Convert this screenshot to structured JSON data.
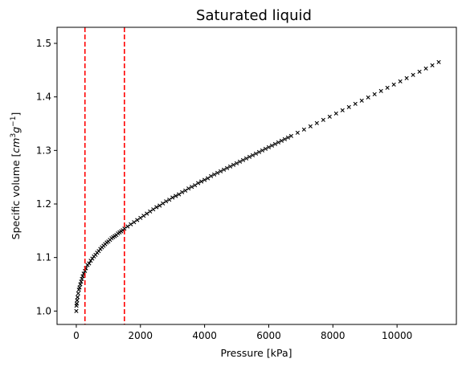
{
  "chart_data": {
    "type": "scatter",
    "title": "Saturated liquid",
    "xlabel": "Pressure [kPa]",
    "ylabel": {
      "prefix": "Specific volume [",
      "var1": "cm",
      "exp1": "3",
      "var2": "g",
      "exp2": "−1",
      "suffix": "]"
    },
    "xlim": [
      -600,
      11850
    ],
    "ylim": [
      0.975,
      1.53
    ],
    "xticks": [
      0,
      2000,
      4000,
      6000,
      8000,
      10000
    ],
    "xtick_labels": [
      "0",
      "2000",
      "4000",
      "6000",
      "8000",
      "10000"
    ],
    "yticks": [
      1.0,
      1.1,
      1.2,
      1.3,
      1.4,
      1.5
    ],
    "ytick_labels": [
      "1.0",
      "1.1",
      "1.2",
      "1.3",
      "1.4",
      "1.5"
    ],
    "grid": false,
    "marker": "x",
    "marker_color": "#000000",
    "vlines": [
      {
        "x": 270,
        "color": "#ff0000",
        "style": "dashed"
      },
      {
        "x": 1500,
        "color": "#ff0000",
        "style": "dashed"
      }
    ],
    "points": {
      "x": [
        0.6,
        5,
        15,
        25,
        40,
        60,
        80,
        100,
        125,
        150,
        175,
        200,
        230,
        270,
        300,
        350,
        400,
        450,
        500,
        550,
        600,
        650,
        700,
        750,
        800,
        850,
        900,
        950,
        1000,
        1050,
        1100,
        1150,
        1200,
        1250,
        1300,
        1350,
        1400,
        1450,
        1500,
        1600,
        1700,
        1800,
        1900,
        2000,
        2100,
        2200,
        2300,
        2400,
        2500,
        2600,
        2700,
        2800,
        2900,
        3000,
        3100,
        3200,
        3300,
        3400,
        3500,
        3600,
        3700,
        3800,
        3900,
        4000,
        4100,
        4200,
        4300,
        4400,
        4500,
        4600,
        4700,
        4800,
        4900,
        5000,
        5100,
        5200,
        5300,
        5400,
        5500,
        5600,
        5700,
        5800,
        5900,
        6000,
        6100,
        6200,
        6300,
        6400,
        6500,
        6600,
        6700,
        6900,
        7100,
        7300,
        7500,
        7700,
        7900,
        8100,
        8300,
        8500,
        8700,
        8900,
        9100,
        9300,
        9500,
        9700,
        9900,
        10100,
        10300,
        10500,
        10700,
        10900,
        11100,
        11300
      ],
      "y": [
        1.0,
        1.01,
        1.014,
        1.02,
        1.026,
        1.033,
        1.04,
        1.044,
        1.05,
        1.055,
        1.06,
        1.065,
        1.07,
        1.075,
        1.08,
        1.086,
        1.089,
        1.094,
        1.098,
        1.102,
        1.105,
        1.109,
        1.112,
        1.116,
        1.119,
        1.122,
        1.125,
        1.128,
        1.13,
        1.133,
        1.136,
        1.138,
        1.14,
        1.142,
        1.145,
        1.147,
        1.149,
        1.151,
        1.154,
        1.158,
        1.162,
        1.166,
        1.17,
        1.174,
        1.178,
        1.182,
        1.186,
        1.19,
        1.194,
        1.197,
        1.201,
        1.205,
        1.208,
        1.212,
        1.215,
        1.218,
        1.222,
        1.225,
        1.229,
        1.232,
        1.235,
        1.239,
        1.242,
        1.245,
        1.248,
        1.252,
        1.255,
        1.258,
        1.261,
        1.264,
        1.267,
        1.27,
        1.273,
        1.276,
        1.279,
        1.282,
        1.285,
        1.288,
        1.291,
        1.294,
        1.297,
        1.3,
        1.303,
        1.306,
        1.309,
        1.312,
        1.315,
        1.318,
        1.321,
        1.324,
        1.327,
        1.333,
        1.339,
        1.345,
        1.351,
        1.357,
        1.363,
        1.369,
        1.375,
        1.381,
        1.387,
        1.393,
        1.399,
        1.405,
        1.411,
        1.417,
        1.423,
        1.429,
        1.435,
        1.441,
        1.447,
        1.453,
        1.459,
        1.465
      ]
    }
  }
}
